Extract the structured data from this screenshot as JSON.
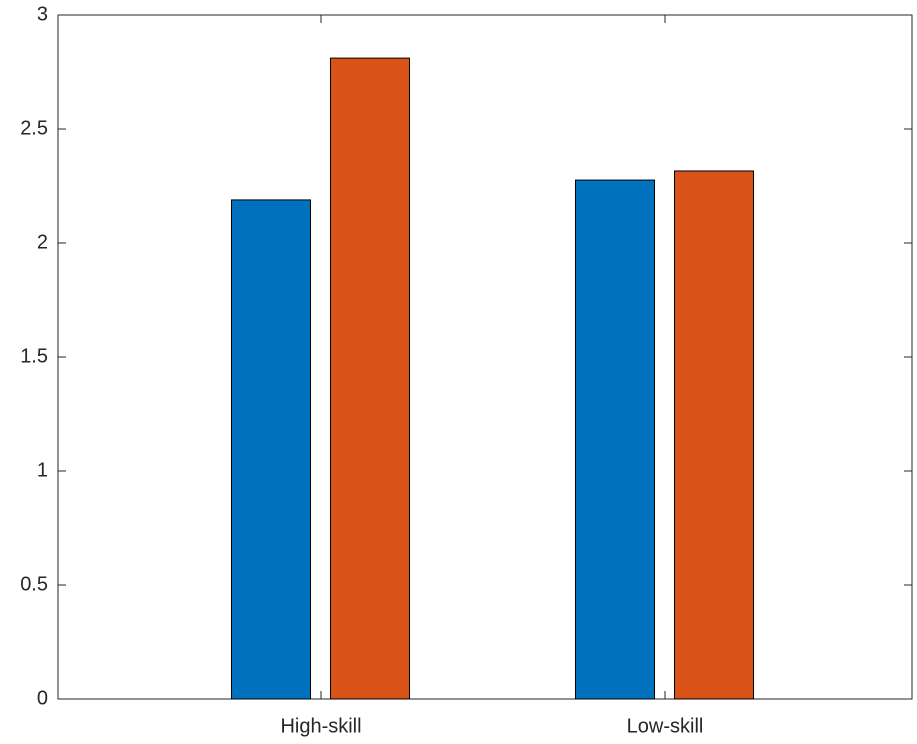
{
  "chart_data": {
    "type": "bar",
    "categories": [
      "High-skill",
      "Low-skill"
    ],
    "series": [
      {
        "color": "#0072bd",
        "values": [
          2.189,
          2.276
        ]
      },
      {
        "color": "#d95319",
        "values": [
          2.811,
          2.316
        ]
      }
    ],
    "ylim": [
      0,
      3
    ],
    "yticks": [
      0,
      0.5,
      1,
      1.5,
      2,
      2.5,
      3
    ],
    "grid": false
  }
}
